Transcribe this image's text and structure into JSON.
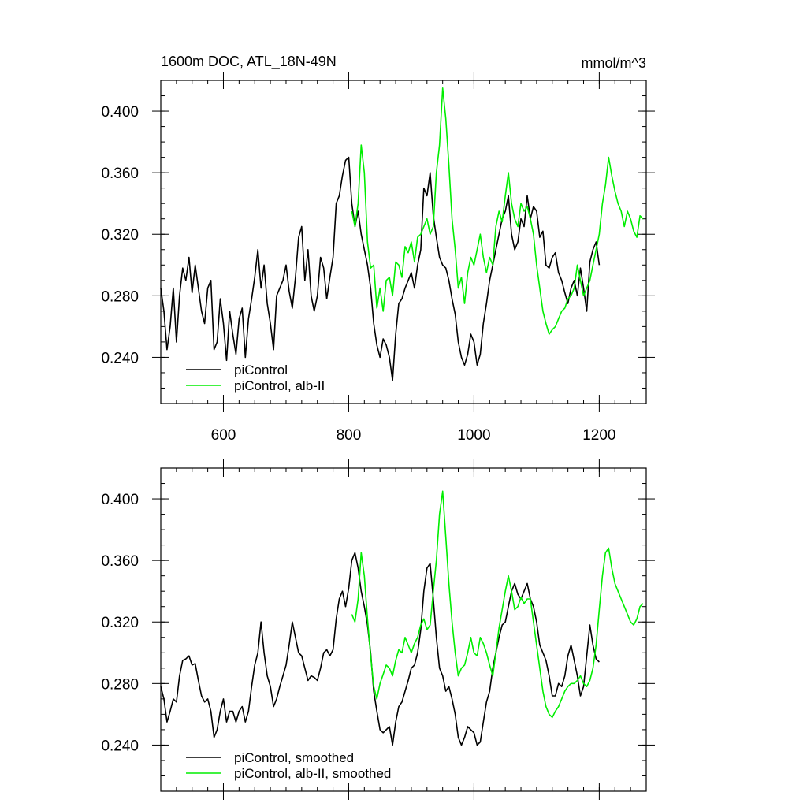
{
  "chart_data": [
    {
      "type": "line",
      "title": "1600m DOC, ATL_18N-49N",
      "units": "mmol/m^3",
      "xlabel": "",
      "ylabel": "",
      "xlim": [
        500,
        1275
      ],
      "ylim": [
        0.21,
        0.42
      ],
      "x_ticks": [
        600,
        800,
        1000,
        1200
      ],
      "x_tick_labels": [
        "600",
        "800",
        "1000",
        "1200"
      ],
      "y_ticks": [
        0.24,
        0.28,
        0.32,
        0.36,
        0.4
      ],
      "y_tick_labels": [
        "0.240",
        "0.280",
        "0.320",
        "0.360",
        "0.400"
      ],
      "grid": false,
      "legend_position": "bottom-left",
      "series": [
        {
          "name": "piControl",
          "color": "#000000",
          "x": [
            500,
            505,
            510,
            515,
            520,
            525,
            530,
            535,
            540,
            545,
            550,
            555,
            560,
            565,
            570,
            575,
            580,
            585,
            590,
            595,
            600,
            605,
            610,
            615,
            620,
            625,
            630,
            635,
            640,
            645,
            650,
            655,
            660,
            665,
            670,
            675,
            680,
            685,
            690,
            695,
            700,
            705,
            710,
            715,
            720,
            725,
            730,
            735,
            740,
            745,
            750,
            755,
            760,
            765,
            770,
            775,
            780,
            785,
            790,
            795,
            800,
            805,
            810,
            815,
            820,
            825,
            830,
            835,
            840,
            845,
            850,
            855,
            860,
            865,
            870,
            875,
            880,
            885,
            890,
            895,
            900,
            905,
            910,
            915,
            920,
            925,
            930,
            935,
            940,
            945,
            950,
            955,
            960,
            965,
            970,
            975,
            980,
            985,
            990,
            995,
            1000,
            1005,
            1010,
            1015,
            1020,
            1025,
            1030,
            1035,
            1040,
            1045,
            1050,
            1055,
            1060,
            1065,
            1070,
            1075,
            1080,
            1085,
            1090,
            1095,
            1100,
            1105,
            1110,
            1115,
            1120,
            1125,
            1130,
            1135,
            1140,
            1145,
            1150,
            1155,
            1160,
            1165,
            1170,
            1175,
            1180,
            1185,
            1190,
            1195,
            1200
          ],
          "y": [
            0.285,
            0.27,
            0.245,
            0.26,
            0.285,
            0.25,
            0.28,
            0.298,
            0.29,
            0.305,
            0.282,
            0.3,
            0.285,
            0.27,
            0.262,
            0.285,
            0.29,
            0.245,
            0.25,
            0.278,
            0.262,
            0.238,
            0.27,
            0.255,
            0.242,
            0.265,
            0.272,
            0.24,
            0.265,
            0.278,
            0.292,
            0.31,
            0.285,
            0.3,
            0.275,
            0.262,
            0.245,
            0.28,
            0.285,
            0.29,
            0.3,
            0.283,
            0.272,
            0.292,
            0.318,
            0.325,
            0.29,
            0.31,
            0.28,
            0.27,
            0.28,
            0.305,
            0.298,
            0.278,
            0.292,
            0.305,
            0.34,
            0.345,
            0.358,
            0.368,
            0.37,
            0.34,
            0.325,
            0.335,
            0.32,
            0.31,
            0.3,
            0.285,
            0.262,
            0.248,
            0.24,
            0.252,
            0.248,
            0.24,
            0.225,
            0.255,
            0.275,
            0.278,
            0.285,
            0.29,
            0.295,
            0.285,
            0.3,
            0.31,
            0.35,
            0.345,
            0.36,
            0.332,
            0.318,
            0.305,
            0.3,
            0.298,
            0.29,
            0.278,
            0.268,
            0.25,
            0.24,
            0.235,
            0.242,
            0.255,
            0.25,
            0.235,
            0.242,
            0.262,
            0.275,
            0.29,
            0.3,
            0.31,
            0.32,
            0.33,
            0.335,
            0.345,
            0.32,
            0.31,
            0.315,
            0.33,
            0.325,
            0.345,
            0.33,
            0.338,
            0.335,
            0.318,
            0.322,
            0.3,
            0.298,
            0.305,
            0.308,
            0.295,
            0.29,
            0.282,
            0.275,
            0.285,
            0.29,
            0.28,
            0.298,
            0.285,
            0.27,
            0.302,
            0.31,
            0.315,
            0.3
          ]
        },
        {
          "name": "piControl, alb-II",
          "color": "#00ee00",
          "x": [
            805,
            810,
            815,
            820,
            825,
            830,
            835,
            840,
            845,
            850,
            855,
            860,
            865,
            870,
            875,
            880,
            885,
            890,
            895,
            900,
            905,
            910,
            915,
            920,
            925,
            930,
            935,
            940,
            945,
            950,
            955,
            960,
            965,
            970,
            975,
            980,
            985,
            990,
            995,
            1000,
            1005,
            1010,
            1015,
            1020,
            1025,
            1030,
            1035,
            1040,
            1045,
            1050,
            1055,
            1060,
            1065,
            1070,
            1075,
            1080,
            1085,
            1090,
            1095,
            1100,
            1105,
            1110,
            1115,
            1120,
            1125,
            1130,
            1135,
            1140,
            1145,
            1150,
            1155,
            1160,
            1165,
            1170,
            1175,
            1180,
            1185,
            1190,
            1195,
            1200,
            1205,
            1210,
            1215,
            1220,
            1225,
            1230,
            1235,
            1240,
            1245,
            1250,
            1255,
            1260,
            1265,
            1270
          ],
          "y": [
            0.335,
            0.325,
            0.34,
            0.378,
            0.36,
            0.315,
            0.298,
            0.3,
            0.272,
            0.285,
            0.27,
            0.29,
            0.292,
            0.28,
            0.302,
            0.3,
            0.292,
            0.312,
            0.308,
            0.315,
            0.302,
            0.318,
            0.32,
            0.325,
            0.33,
            0.32,
            0.325,
            0.36,
            0.378,
            0.415,
            0.395,
            0.365,
            0.33,
            0.31,
            0.285,
            0.292,
            0.275,
            0.295,
            0.305,
            0.3,
            0.31,
            0.32,
            0.305,
            0.295,
            0.305,
            0.3,
            0.325,
            0.335,
            0.328,
            0.345,
            0.36,
            0.34,
            0.33,
            0.325,
            0.34,
            0.335,
            0.338,
            0.33,
            0.32,
            0.3,
            0.285,
            0.27,
            0.262,
            0.255,
            0.258,
            0.26,
            0.265,
            0.27,
            0.272,
            0.278,
            0.28,
            0.285,
            0.3,
            0.29,
            0.28,
            0.285,
            0.29,
            0.3,
            0.31,
            0.32,
            0.34,
            0.352,
            0.37,
            0.358,
            0.348,
            0.34,
            0.335,
            0.325,
            0.335,
            0.33,
            0.322,
            0.318,
            0.332,
            0.33
          ]
        }
      ]
    },
    {
      "type": "line",
      "title": "",
      "xlabel": "",
      "ylabel": "",
      "xlim": [
        500,
        1275
      ],
      "ylim": [
        0.21,
        0.42
      ],
      "x_ticks": [
        600,
        800,
        1000,
        1200
      ],
      "y_ticks": [
        0.24,
        0.28,
        0.32,
        0.36,
        0.4
      ],
      "y_tick_labels": [
        "0.240",
        "0.280",
        "0.320",
        "0.360",
        "0.400"
      ],
      "grid": false,
      "legend_position": "bottom-left",
      "series": [
        {
          "name": "piControl, smoothed",
          "color": "#000000",
          "x": [
            500,
            505,
            510,
            515,
            520,
            525,
            530,
            535,
            540,
            545,
            550,
            555,
            560,
            565,
            570,
            575,
            580,
            585,
            590,
            595,
            600,
            605,
            610,
            615,
            620,
            625,
            630,
            635,
            640,
            645,
            650,
            655,
            660,
            665,
            670,
            675,
            680,
            685,
            690,
            695,
            700,
            705,
            710,
            715,
            720,
            725,
            730,
            735,
            740,
            745,
            750,
            755,
            760,
            765,
            770,
            775,
            780,
            785,
            790,
            795,
            800,
            805,
            810,
            815,
            820,
            825,
            830,
            835,
            840,
            845,
            850,
            855,
            860,
            865,
            870,
            875,
            880,
            885,
            890,
            895,
            900,
            905,
            910,
            915,
            920,
            925,
            930,
            935,
            940,
            945,
            950,
            955,
            960,
            965,
            970,
            975,
            980,
            985,
            990,
            995,
            1000,
            1005,
            1010,
            1015,
            1020,
            1025,
            1030,
            1035,
            1040,
            1045,
            1050,
            1055,
            1060,
            1065,
            1070,
            1075,
            1080,
            1085,
            1090,
            1095,
            1100,
            1105,
            1110,
            1115,
            1120,
            1125,
            1130,
            1135,
            1140,
            1145,
            1150,
            1155,
            1160,
            1165,
            1170,
            1175,
            1180,
            1185,
            1190,
            1195,
            1200
          ],
          "y": [
            0.278,
            0.27,
            0.255,
            0.262,
            0.27,
            0.268,
            0.285,
            0.295,
            0.296,
            0.298,
            0.292,
            0.293,
            0.282,
            0.272,
            0.268,
            0.27,
            0.262,
            0.245,
            0.25,
            0.262,
            0.27,
            0.255,
            0.262,
            0.262,
            0.255,
            0.262,
            0.265,
            0.255,
            0.262,
            0.278,
            0.292,
            0.3,
            0.32,
            0.3,
            0.285,
            0.278,
            0.265,
            0.27,
            0.278,
            0.285,
            0.292,
            0.305,
            0.32,
            0.31,
            0.3,
            0.298,
            0.29,
            0.282,
            0.285,
            0.284,
            0.282,
            0.29,
            0.3,
            0.302,
            0.298,
            0.302,
            0.322,
            0.335,
            0.34,
            0.33,
            0.342,
            0.36,
            0.365,
            0.355,
            0.34,
            0.33,
            0.318,
            0.3,
            0.275,
            0.262,
            0.25,
            0.248,
            0.25,
            0.252,
            0.24,
            0.255,
            0.265,
            0.268,
            0.275,
            0.282,
            0.29,
            0.292,
            0.3,
            0.315,
            0.34,
            0.355,
            0.358,
            0.335,
            0.31,
            0.29,
            0.285,
            0.275,
            0.278,
            0.27,
            0.26,
            0.245,
            0.24,
            0.245,
            0.252,
            0.25,
            0.248,
            0.24,
            0.242,
            0.255,
            0.268,
            0.275,
            0.29,
            0.3,
            0.31,
            0.318,
            0.32,
            0.33,
            0.34,
            0.345,
            0.338,
            0.335,
            0.34,
            0.345,
            0.335,
            0.33,
            0.32,
            0.305,
            0.3,
            0.295,
            0.285,
            0.272,
            0.272,
            0.28,
            0.278,
            0.285,
            0.298,
            0.305,
            0.295,
            0.285,
            0.272,
            0.278,
            0.298,
            0.318,
            0.305,
            0.296,
            0.294
          ]
        },
        {
          "name": "piControl, alb-II, smoothed",
          "color": "#00ee00",
          "x": [
            805,
            810,
            815,
            820,
            825,
            830,
            835,
            840,
            845,
            850,
            855,
            860,
            865,
            870,
            875,
            880,
            885,
            890,
            895,
            900,
            905,
            910,
            915,
            920,
            925,
            930,
            935,
            940,
            945,
            950,
            955,
            960,
            965,
            970,
            975,
            980,
            985,
            990,
            995,
            1000,
            1005,
            1010,
            1015,
            1020,
            1025,
            1030,
            1035,
            1040,
            1045,
            1050,
            1055,
            1060,
            1065,
            1070,
            1075,
            1080,
            1085,
            1090,
            1095,
            1100,
            1105,
            1110,
            1115,
            1120,
            1125,
            1130,
            1135,
            1140,
            1145,
            1150,
            1155,
            1160,
            1165,
            1170,
            1175,
            1180,
            1185,
            1190,
            1195,
            1200,
            1205,
            1210,
            1215,
            1220,
            1225,
            1230,
            1235,
            1240,
            1245,
            1250,
            1255,
            1260,
            1265,
            1270
          ],
          "y": [
            0.325,
            0.32,
            0.335,
            0.365,
            0.35,
            0.322,
            0.298,
            0.278,
            0.27,
            0.28,
            0.286,
            0.292,
            0.29,
            0.285,
            0.295,
            0.302,
            0.3,
            0.31,
            0.305,
            0.3,
            0.306,
            0.31,
            0.318,
            0.322,
            0.315,
            0.318,
            0.34,
            0.36,
            0.39,
            0.405,
            0.375,
            0.345,
            0.32,
            0.3,
            0.285,
            0.29,
            0.292,
            0.3,
            0.31,
            0.3,
            0.298,
            0.31,
            0.306,
            0.3,
            0.292,
            0.285,
            0.3,
            0.316,
            0.328,
            0.34,
            0.35,
            0.34,
            0.328,
            0.33,
            0.336,
            0.332,
            0.335,
            0.335,
            0.32,
            0.305,
            0.29,
            0.275,
            0.265,
            0.26,
            0.258,
            0.262,
            0.265,
            0.27,
            0.275,
            0.278,
            0.28,
            0.28,
            0.282,
            0.285,
            0.28,
            0.278,
            0.282,
            0.29,
            0.305,
            0.328,
            0.35,
            0.365,
            0.368,
            0.355,
            0.345,
            0.34,
            0.335,
            0.33,
            0.325,
            0.32,
            0.318,
            0.322,
            0.33,
            0.332
          ]
        }
      ]
    }
  ]
}
